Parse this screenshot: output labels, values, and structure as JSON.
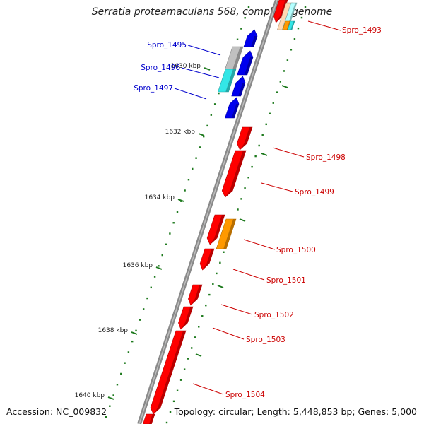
{
  "title": "Serratia proteamaculans 568, complete genome",
  "accession": "Accession: NC_009832",
  "summary": "Topology: circular; Length: 5,448,853 bp; Genes: 5,000",
  "colors": {
    "backbone": "#808080",
    "tick": "#1e7a1e",
    "forward_gene": "#ff0000",
    "reverse_gene": "#0000ee",
    "orange_feature": "#ff9900",
    "cyan_feature": "#33e6e6",
    "grey_feature": "#c0c0c0",
    "peach_feature": "#ffd9b3",
    "light_cyan_feature": "#b3ffff",
    "red_label": "#cc0000",
    "blue_label": "#0000cc"
  },
  "tick_labels": [
    "1630 kbp",
    "1632 kbp",
    "1634 kbp",
    "1636 kbp",
    "1638 kbp",
    "1640 kbp"
  ],
  "gene_labels": [
    {
      "text": "Spro_1493",
      "strand": "forward"
    },
    {
      "text": "Spro_1495",
      "strand": "reverse"
    },
    {
      "text": "Spro_1496",
      "strand": "reverse"
    },
    {
      "text": "Spro_1497",
      "strand": "reverse"
    },
    {
      "text": "Spro_1498",
      "strand": "forward"
    },
    {
      "text": "Spro_1499",
      "strand": "forward"
    },
    {
      "text": "Spro_1500",
      "strand": "forward"
    },
    {
      "text": "Spro_1501",
      "strand": "forward"
    },
    {
      "text": "Spro_1502",
      "strand": "forward"
    },
    {
      "text": "Spro_1503",
      "strand": "forward"
    },
    {
      "text": "Spro_1504",
      "strand": "forward"
    }
  ]
}
